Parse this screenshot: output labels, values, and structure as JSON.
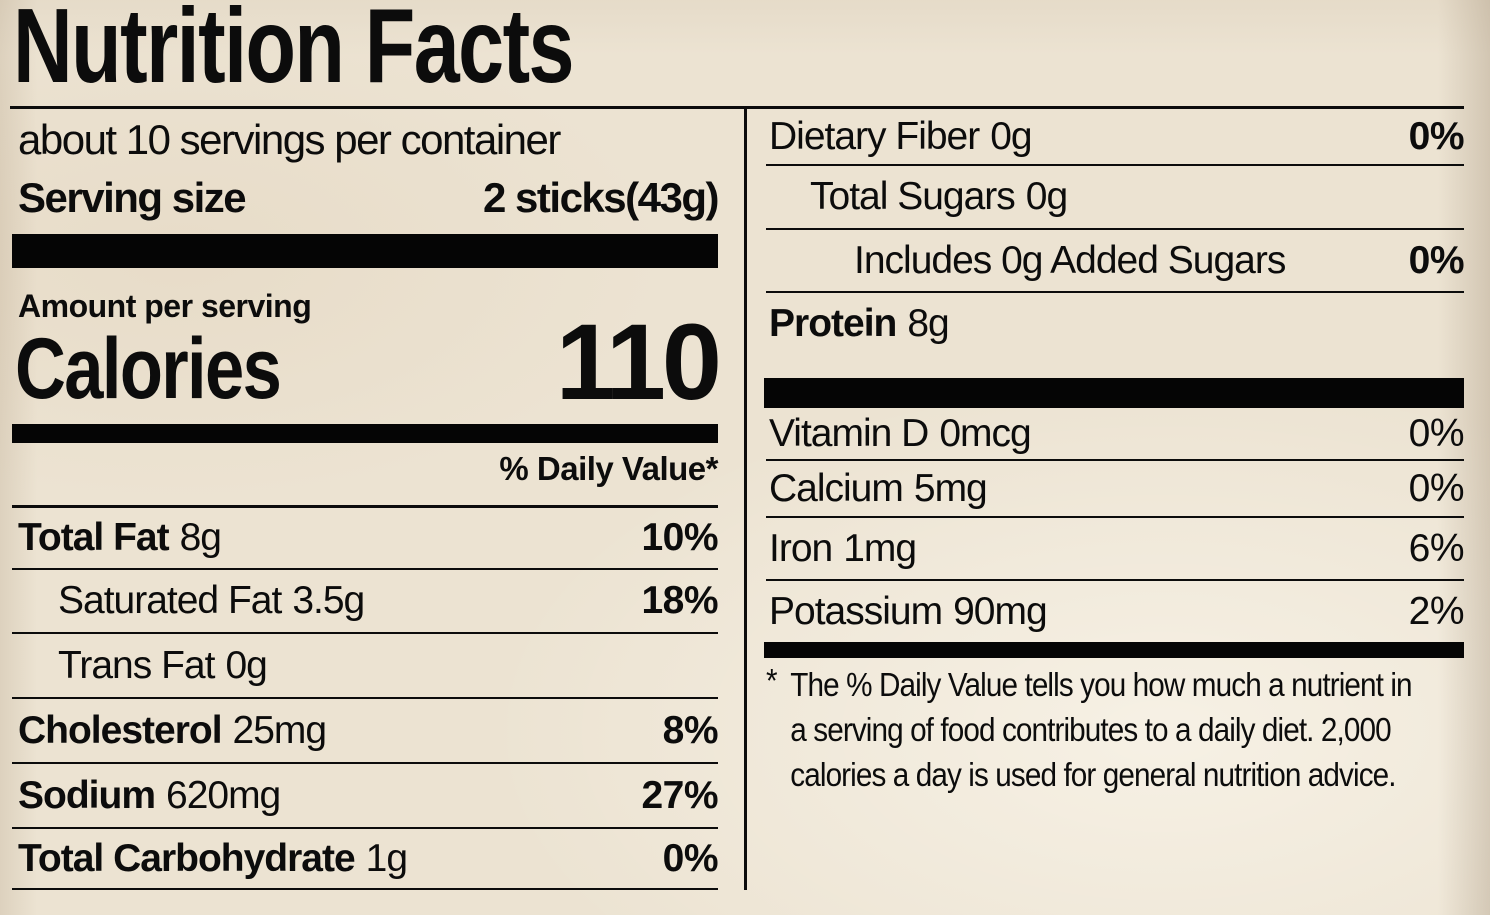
{
  "label": {
    "title": "Nutrition Facts",
    "servings_per_container": "about 10 servings per container",
    "serving_size_label": "Serving size",
    "serving_size_value": "2 sticks(43g)",
    "amount_per_serving": "Amount per serving",
    "calories_label": "Calories",
    "calories_value": "110",
    "daily_value_header": "% Daily Value*"
  },
  "nutrients_left": [
    {
      "name": "Total Fat",
      "amount": "8g",
      "dv": "10%"
    },
    {
      "name": "Saturated Fat",
      "amount": "3.5g",
      "dv": "18%"
    },
    {
      "name": "Trans Fat",
      "amount": "0g",
      "dv": ""
    },
    {
      "name": "Cholesterol",
      "amount": "25mg",
      "dv": "8%"
    },
    {
      "name": "Sodium",
      "amount": "620mg",
      "dv": "27%"
    },
    {
      "name": "Total Carbohydrate",
      "amount": "1g",
      "dv": "0%"
    }
  ],
  "nutrients_right": [
    {
      "name": "Dietary Fiber",
      "amount": "0g",
      "dv": "0%"
    },
    {
      "name": "Total Sugars",
      "amount": "0g",
      "dv": ""
    },
    {
      "name": "Includes 0g Added Sugars",
      "amount": "",
      "dv": "0%"
    },
    {
      "name": "Protein",
      "amount": "8g",
      "dv": ""
    }
  ],
  "vitamins": [
    {
      "name": "Vitamin D",
      "amount": "0mcg",
      "dv": "0%"
    },
    {
      "name": "Calcium",
      "amount": "5mg",
      "dv": "0%"
    },
    {
      "name": "Iron",
      "amount": "1mg",
      "dv": "6%"
    },
    {
      "name": "Potassium",
      "amount": "90mg",
      "dv": "2%"
    }
  ],
  "footnote": {
    "marker": "*",
    "lines": [
      "The % Daily Value tells you how much a nutrient in",
      "a serving of food contributes to a daily diet. 2,000",
      "calories a day is used for general nutrition advice."
    ]
  },
  "colors": {
    "paper": "#ece3d2",
    "ink": "#0c0c0c",
    "bar": "#050505"
  }
}
